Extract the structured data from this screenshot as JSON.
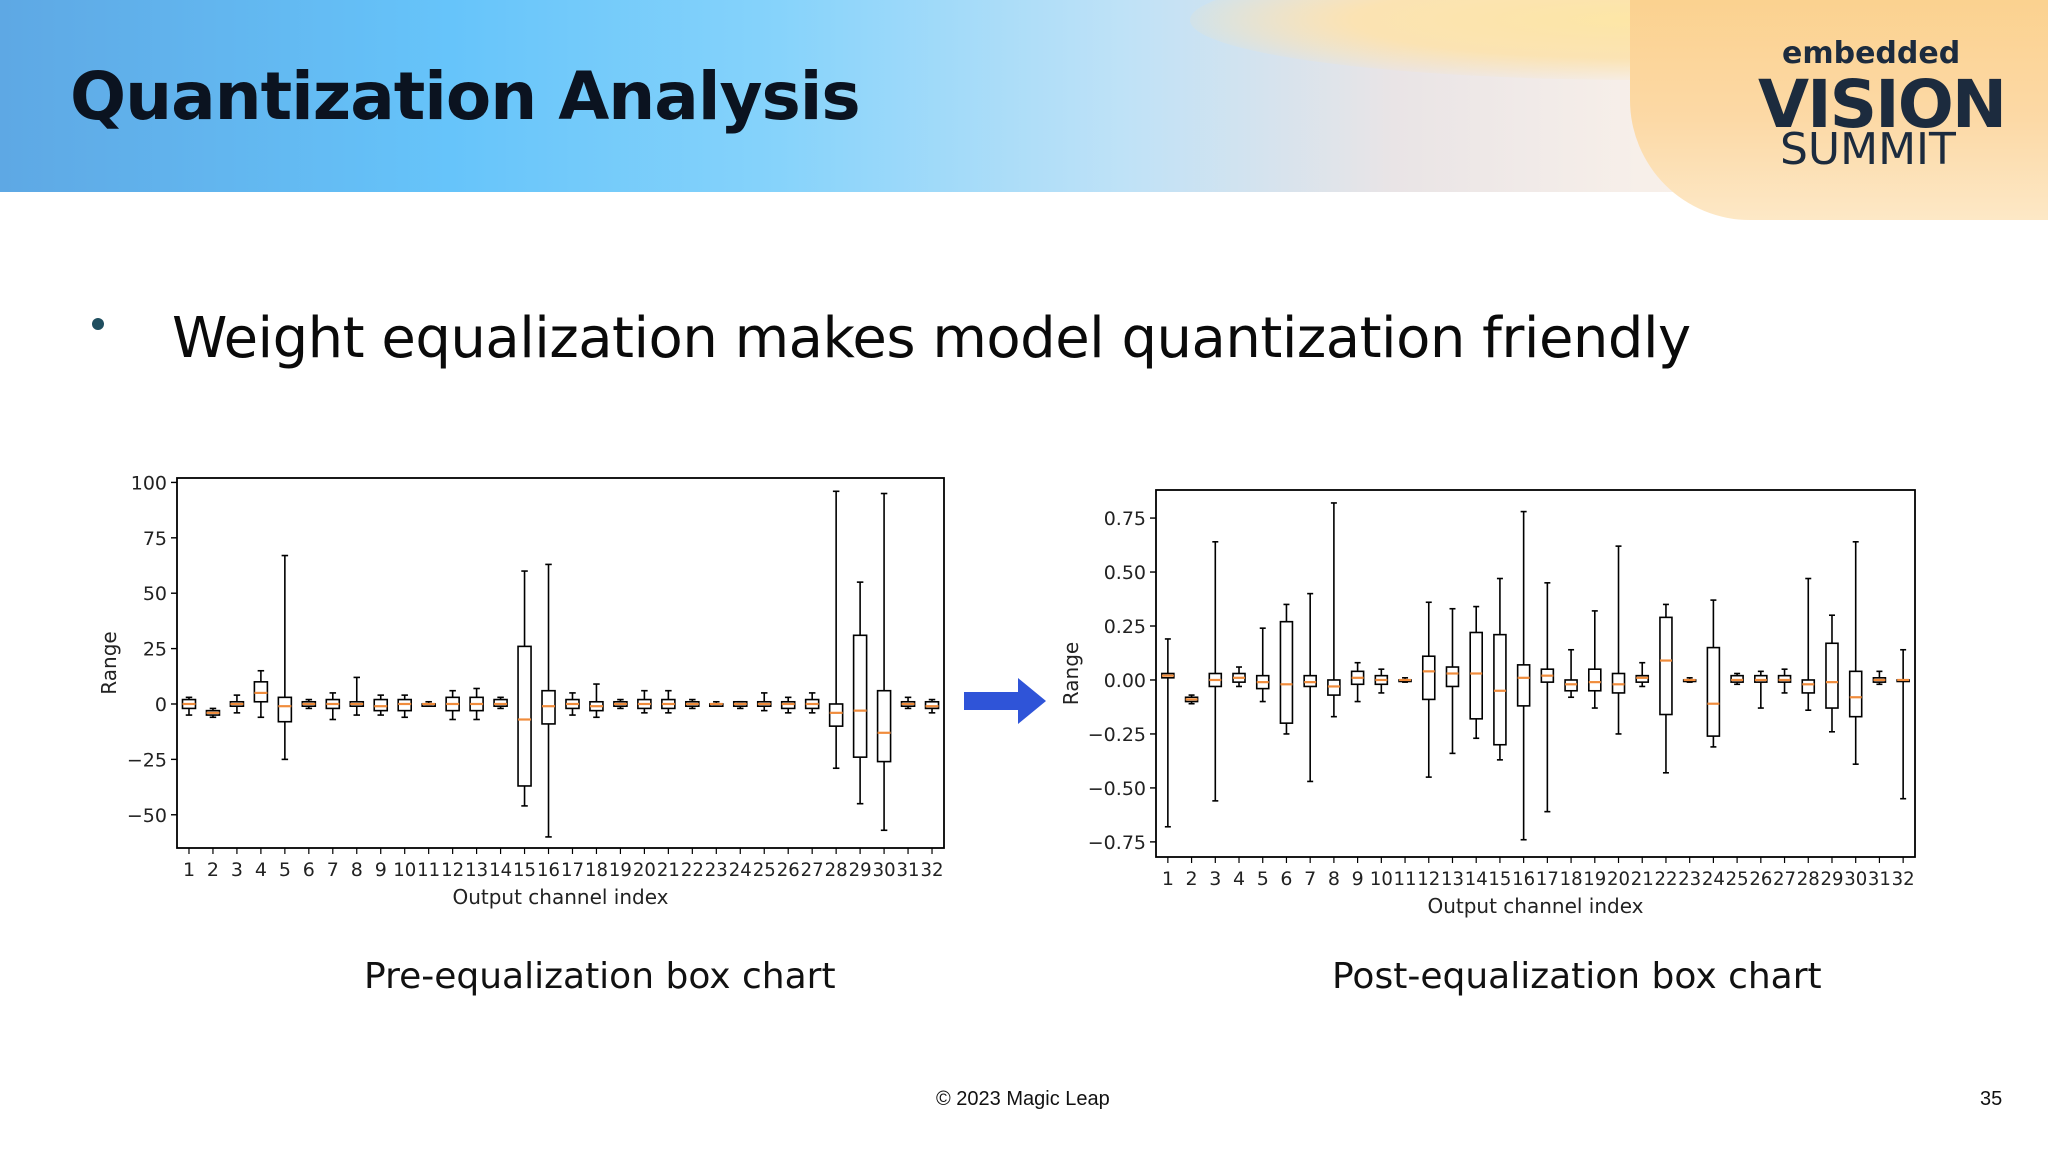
{
  "slide": {
    "title": "Quantization Analysis",
    "bullet": "Weight equalization makes model quantization friendly",
    "footer": "© 2023 Magic Leap",
    "page_number": "35",
    "logo": {
      "line1": "embedded",
      "line2": "VISION",
      "line3": "SUMMIT"
    },
    "caption_left": "Pre-equalization box chart",
    "caption_right": "Post-equalization box chart"
  },
  "colors": {
    "median": "#f08c3c",
    "box": "#000000",
    "arrow": "#2f54d8"
  },
  "chart_data": [
    {
      "type": "box",
      "xlabel": "Output channel index",
      "ylabel": "Range",
      "ylim": [
        -65,
        102
      ],
      "yticks": [
        100,
        75,
        50,
        25,
        0,
        -25,
        -50
      ],
      "ytick_labels": [
        "100",
        "75",
        "50",
        "25",
        "0",
        "−25",
        "−50"
      ],
      "categories": [
        "1",
        "2",
        "3",
        "4",
        "5",
        "6",
        "7",
        "8",
        "9",
        "10",
        "11",
        "12",
        "13",
        "14",
        "15",
        "16",
        "17",
        "18",
        "19",
        "20",
        "21",
        "22",
        "23",
        "24",
        "25",
        "26",
        "27",
        "28",
        "29",
        "30",
        "31",
        "32"
      ],
      "boxes": [
        {
          "wlo": -5,
          "q1": -2,
          "med": 0,
          "q3": 2,
          "whi": 3
        },
        {
          "wlo": -6,
          "q1": -5,
          "med": -4,
          "q3": -3,
          "whi": -2
        },
        {
          "wlo": -4,
          "q1": -1,
          "med": 0,
          "q3": 1,
          "whi": 4
        },
        {
          "wlo": -6,
          "q1": 1,
          "med": 5,
          "q3": 10,
          "whi": 15
        },
        {
          "wlo": -25,
          "q1": -8,
          "med": -1,
          "q3": 3,
          "whi": 67
        },
        {
          "wlo": -2,
          "q1": -1,
          "med": 0,
          "q3": 1,
          "whi": 2
        },
        {
          "wlo": -7,
          "q1": -2,
          "med": 0,
          "q3": 2,
          "whi": 5
        },
        {
          "wlo": -5,
          "q1": -1,
          "med": 0,
          "q3": 1,
          "whi": 12
        },
        {
          "wlo": -5,
          "q1": -3,
          "med": -1,
          "q3": 2,
          "whi": 4
        },
        {
          "wlo": -6,
          "q1": -3,
          "med": 0,
          "q3": 2,
          "whi": 4
        },
        {
          "wlo": -1,
          "q1": -1,
          "med": 0,
          "q3": 0,
          "whi": 1
        },
        {
          "wlo": -7,
          "q1": -3,
          "med": 0,
          "q3": 3,
          "whi": 6
        },
        {
          "wlo": -7,
          "q1": -3,
          "med": 0,
          "q3": 3,
          "whi": 7
        },
        {
          "wlo": -2,
          "q1": -1,
          "med": 0,
          "q3": 2,
          "whi": 3
        },
        {
          "wlo": -46,
          "q1": -37,
          "med": -7,
          "q3": 26,
          "whi": 60
        },
        {
          "wlo": -60,
          "q1": -9,
          "med": -1,
          "q3": 6,
          "whi": 63
        },
        {
          "wlo": -5,
          "q1": -2,
          "med": 0,
          "q3": 2,
          "whi": 5
        },
        {
          "wlo": -6,
          "q1": -3,
          "med": -1,
          "q3": 1,
          "whi": 9
        },
        {
          "wlo": -2,
          "q1": -1,
          "med": 0,
          "q3": 1,
          "whi": 2
        },
        {
          "wlo": -4,
          "q1": -2,
          "med": 0,
          "q3": 2,
          "whi": 6
        },
        {
          "wlo": -4,
          "q1": -2,
          "med": 0,
          "q3": 2,
          "whi": 6
        },
        {
          "wlo": -2,
          "q1": -1,
          "med": 0,
          "q3": 1,
          "whi": 2
        },
        {
          "wlo": -1,
          "q1": -1,
          "med": 0,
          "q3": 0,
          "whi": 1
        },
        {
          "wlo": -2,
          "q1": -1,
          "med": 0,
          "q3": 1,
          "whi": 1
        },
        {
          "wlo": -3,
          "q1": -1,
          "med": 0,
          "q3": 1,
          "whi": 5
        },
        {
          "wlo": -4,
          "q1": -2,
          "med": 0,
          "q3": 1,
          "whi": 3
        },
        {
          "wlo": -4,
          "q1": -2,
          "med": 0,
          "q3": 2,
          "whi": 5
        },
        {
          "wlo": -29,
          "q1": -10,
          "med": -4,
          "q3": 0,
          "whi": 96
        },
        {
          "wlo": -45,
          "q1": -24,
          "med": -3,
          "q3": 31,
          "whi": 55
        },
        {
          "wlo": -57,
          "q1": -26,
          "med": -13,
          "q3": 6,
          "whi": 95
        },
        {
          "wlo": -2,
          "q1": -1,
          "med": 0,
          "q3": 1,
          "whi": 3
        },
        {
          "wlo": -4,
          "q1": -2,
          "med": -1,
          "q3": 1,
          "whi": 2
        }
      ]
    },
    {
      "type": "box",
      "xlabel": "Output channel index",
      "ylabel": "Range",
      "ylim": [
        -0.82,
        0.88
      ],
      "yticks": [
        0.75,
        0.5,
        0.25,
        0.0,
        -0.25,
        -0.5,
        -0.75
      ],
      "ytick_labels": [
        "0.75",
        "0.50",
        "0.25",
        "0.00",
        "−0.25",
        "−0.50",
        "−0.75"
      ],
      "categories": [
        "1",
        "2",
        "3",
        "4",
        "5",
        "6",
        "7",
        "8",
        "9",
        "10",
        "11",
        "12",
        "13",
        "14",
        "15",
        "16",
        "17",
        "18",
        "19",
        "20",
        "21",
        "22",
        "23",
        "24",
        "25",
        "26",
        "27",
        "28",
        "29",
        "30",
        "31",
        "32"
      ],
      "boxes": [
        {
          "wlo": -0.68,
          "q1": 0.01,
          "med": 0.02,
          "q3": 0.03,
          "whi": 0.19
        },
        {
          "wlo": -0.11,
          "q1": -0.1,
          "med": -0.09,
          "q3": -0.08,
          "whi": -0.07
        },
        {
          "wlo": -0.56,
          "q1": -0.03,
          "med": 0.0,
          "q3": 0.03,
          "whi": 0.64
        },
        {
          "wlo": -0.03,
          "q1": -0.01,
          "med": 0.01,
          "q3": 0.03,
          "whi": 0.06
        },
        {
          "wlo": -0.1,
          "q1": -0.04,
          "med": -0.01,
          "q3": 0.02,
          "whi": 0.24
        },
        {
          "wlo": -0.25,
          "q1": -0.2,
          "med": -0.02,
          "q3": 0.27,
          "whi": 0.35
        },
        {
          "wlo": -0.47,
          "q1": -0.03,
          "med": -0.01,
          "q3": 0.02,
          "whi": 0.4
        },
        {
          "wlo": -0.17,
          "q1": -0.07,
          "med": -0.03,
          "q3": 0.0,
          "whi": 0.82
        },
        {
          "wlo": -0.1,
          "q1": -0.02,
          "med": 0.01,
          "q3": 0.04,
          "whi": 0.08
        },
        {
          "wlo": -0.06,
          "q1": -0.02,
          "med": 0.0,
          "q3": 0.02,
          "whi": 0.05
        },
        {
          "wlo": -0.01,
          "q1": 0.0,
          "med": 0.0,
          "q3": 0.0,
          "whi": 0.01
        },
        {
          "wlo": -0.45,
          "q1": -0.09,
          "med": 0.04,
          "q3": 0.11,
          "whi": 0.36
        },
        {
          "wlo": -0.34,
          "q1": -0.03,
          "med": 0.03,
          "q3": 0.06,
          "whi": 0.33
        },
        {
          "wlo": -0.27,
          "q1": -0.18,
          "med": 0.03,
          "q3": 0.22,
          "whi": 0.34
        },
        {
          "wlo": -0.37,
          "q1": -0.3,
          "med": -0.05,
          "q3": 0.21,
          "whi": 0.47
        },
        {
          "wlo": -0.74,
          "q1": -0.12,
          "med": 0.01,
          "q3": 0.07,
          "whi": 0.78
        },
        {
          "wlo": -0.61,
          "q1": -0.01,
          "med": 0.02,
          "q3": 0.05,
          "whi": 0.45
        },
        {
          "wlo": -0.08,
          "q1": -0.05,
          "med": -0.02,
          "q3": 0.0,
          "whi": 0.14
        },
        {
          "wlo": -0.13,
          "q1": -0.05,
          "med": -0.01,
          "q3": 0.05,
          "whi": 0.32
        },
        {
          "wlo": -0.25,
          "q1": -0.06,
          "med": -0.02,
          "q3": 0.03,
          "whi": 0.62
        },
        {
          "wlo": -0.03,
          "q1": -0.01,
          "med": 0.01,
          "q3": 0.02,
          "whi": 0.08
        },
        {
          "wlo": -0.43,
          "q1": -0.16,
          "med": 0.09,
          "q3": 0.29,
          "whi": 0.35
        },
        {
          "wlo": -0.01,
          "q1": 0.0,
          "med": 0.0,
          "q3": 0.0,
          "whi": 0.01
        },
        {
          "wlo": -0.31,
          "q1": -0.26,
          "med": -0.11,
          "q3": 0.15,
          "whi": 0.37
        },
        {
          "wlo": -0.02,
          "q1": -0.01,
          "med": 0.0,
          "q3": 0.02,
          "whi": 0.03
        },
        {
          "wlo": -0.13,
          "q1": -0.01,
          "med": 0.0,
          "q3": 0.02,
          "whi": 0.04
        },
        {
          "wlo": -0.06,
          "q1": -0.01,
          "med": 0.0,
          "q3": 0.02,
          "whi": 0.05
        },
        {
          "wlo": -0.14,
          "q1": -0.06,
          "med": -0.02,
          "q3": 0.0,
          "whi": 0.47
        },
        {
          "wlo": -0.24,
          "q1": -0.13,
          "med": -0.01,
          "q3": 0.17,
          "whi": 0.3
        },
        {
          "wlo": -0.39,
          "q1": -0.17,
          "med": -0.08,
          "q3": 0.04,
          "whi": 0.64
        },
        {
          "wlo": -0.02,
          "q1": -0.01,
          "med": 0.0,
          "q3": 0.01,
          "whi": 0.04
        },
        {
          "wlo": -0.55,
          "q1": 0.0,
          "med": 0.0,
          "q3": 0.0,
          "whi": 0.14
        }
      ]
    }
  ]
}
